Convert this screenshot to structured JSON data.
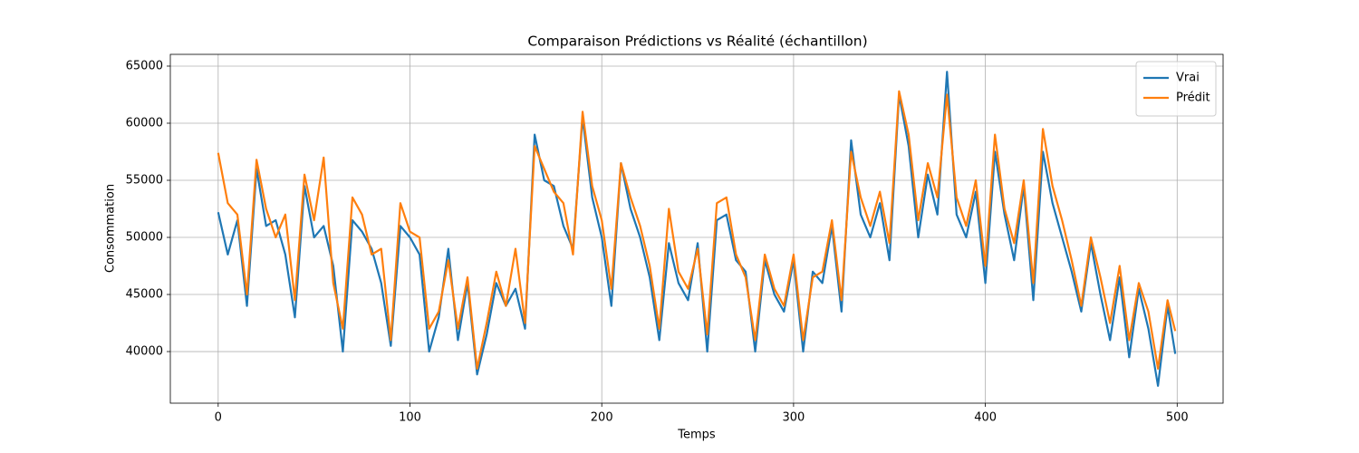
{
  "chart_data": {
    "type": "line",
    "title": "Comparaison Prédictions vs Réalité (échantillon)",
    "x_label": "Temps",
    "y_label": "Consommation",
    "x": [
      0,
      5,
      10,
      15,
      20,
      25,
      30,
      35,
      40,
      45,
      50,
      55,
      60,
      65,
      70,
      75,
      80,
      85,
      90,
      95,
      100,
      105,
      110,
      115,
      120,
      125,
      130,
      135,
      140,
      145,
      150,
      155,
      160,
      165,
      170,
      175,
      180,
      185,
      190,
      195,
      200,
      205,
      210,
      215,
      220,
      225,
      230,
      235,
      240,
      245,
      250,
      255,
      260,
      265,
      270,
      275,
      280,
      285,
      290,
      295,
      300,
      305,
      310,
      315,
      320,
      325,
      330,
      335,
      340,
      345,
      350,
      355,
      360,
      365,
      370,
      375,
      380,
      385,
      390,
      395,
      400,
      405,
      410,
      415,
      420,
      425,
      430,
      435,
      440,
      445,
      450,
      455,
      460,
      465,
      470,
      475,
      480,
      485,
      490,
      495,
      499
    ],
    "series": [
      {
        "name": "Vrai",
        "color": "#1f77b4",
        "values": [
          52200,
          48500,
          51500,
          44000,
          56000,
          51000,
          51500,
          48500,
          43000,
          54500,
          50000,
          51000,
          47500,
          40000,
          51500,
          50500,
          49000,
          46000,
          40500,
          51000,
          50000,
          48500,
          40000,
          43000,
          49000,
          41000,
          46000,
          38000,
          41500,
          46000,
          44000,
          45500,
          42000,
          59000,
          55000,
          54500,
          51000,
          49000,
          60500,
          53500,
          50000,
          44000,
          56500,
          52500,
          50000,
          46500,
          41000,
          49500,
          46000,
          44500,
          49500,
          40000,
          51500,
          52000,
          48000,
          47000,
          40000,
          48000,
          45000,
          43500,
          48000,
          40000,
          47000,
          46000,
          51000,
          43500,
          58500,
          52000,
          50000,
          53000,
          48000,
          62500,
          58000,
          50000,
          55500,
          52000,
          64500,
          52000,
          50000,
          54000,
          46000,
          57500,
          52000,
          48000,
          54500,
          44500,
          57500,
          53000,
          50000,
          47000,
          43500,
          49500,
          45000,
          41000,
          46500,
          39500,
          45500,
          42000,
          37000,
          44000,
          39800
        ]
      },
      {
        "name": "Prédit",
        "color": "#ff7f0e",
        "values": [
          57400,
          53000,
          52000,
          45000,
          56800,
          52500,
          50000,
          52000,
          44500,
          55500,
          51500,
          57000,
          46000,
          42000,
          53500,
          52000,
          48500,
          49000,
          41000,
          53000,
          50500,
          50000,
          42000,
          43500,
          48000,
          42000,
          46500,
          38500,
          42500,
          47000,
          44000,
          49000,
          42500,
          58000,
          56000,
          54000,
          53000,
          48500,
          61000,
          54500,
          51500,
          45500,
          56500,
          53500,
          51000,
          47500,
          42000,
          52500,
          47000,
          45500,
          49000,
          41500,
          53000,
          53500,
          48500,
          46500,
          41000,
          48500,
          45500,
          44000,
          48500,
          41000,
          46500,
          47000,
          51500,
          44500,
          57500,
          53500,
          51000,
          54000,
          49500,
          62800,
          59000,
          51500,
          56500,
          53500,
          62500,
          53500,
          51000,
          55000,
          47500,
          59000,
          52500,
          49500,
          55000,
          46000,
          59500,
          54500,
          51500,
          48000,
          44000,
          50000,
          46500,
          42500,
          47500,
          41000,
          46000,
          43500,
          38500,
          44500,
          41800
        ]
      }
    ],
    "xlim": [
      -24.95,
      523.95
    ],
    "ylim": [
      35480,
      66030
    ],
    "xticks": [
      0,
      100,
      200,
      300,
      400,
      500
    ],
    "yticks": [
      40000,
      45000,
      50000,
      55000,
      60000,
      65000
    ],
    "grid": true,
    "legend": "upper-right"
  }
}
